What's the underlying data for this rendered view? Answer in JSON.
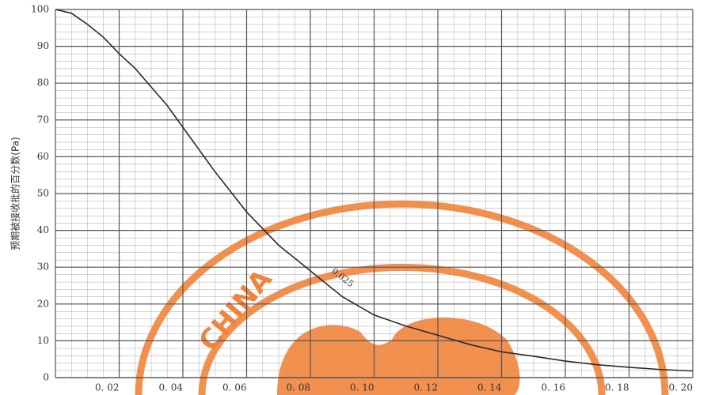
{
  "chart_data": {
    "type": "line",
    "ylabel": "预期被接收批的百分数(Pa)",
    "watermark": "CHINA",
    "x": [
      0,
      0.005,
      0.01,
      0.015,
      0.02,
      0.025,
      0.03,
      0.035,
      0.04,
      0.045,
      0.05,
      0.055,
      0.06,
      0.065,
      0.07,
      0.075,
      0.08,
      0.09,
      0.1,
      0.11,
      0.12,
      0.13,
      0.14,
      0.15,
      0.16,
      0.17,
      0.18,
      0.19,
      0.2
    ],
    "series": [
      {
        "name": "0.025",
        "color": "#2a2a2a",
        "values": [
          100,
          99,
          96,
          92.5,
          88,
          84,
          79,
          74,
          68,
          62,
          56,
          50.5,
          45,
          40.5,
          36,
          32.5,
          29,
          22,
          17,
          14,
          11.5,
          9,
          7,
          5.8,
          4.5,
          3.5,
          2.8,
          2.2,
          1.8
        ]
      }
    ],
    "xlim": [
      0,
      0.2
    ],
    "ylim": [
      0,
      100
    ],
    "xticks": [
      {
        "value": 0.02,
        "label": "0. 02"
      },
      {
        "value": 0.04,
        "label": "0. 04"
      },
      {
        "value": 0.06,
        "label": "0. 06"
      },
      {
        "value": 0.08,
        "label": "0. 08"
      },
      {
        "value": 0.1,
        "label": "0. 10"
      },
      {
        "value": 0.12,
        "label": "0. 12"
      },
      {
        "value": 0.14,
        "label": "0. 14"
      },
      {
        "value": 0.16,
        "label": "0. 16"
      },
      {
        "value": 0.18,
        "label": "0. 18"
      },
      {
        "value": 0.2,
        "label": "0. 20"
      }
    ],
    "yticks": [
      0,
      10,
      20,
      30,
      40,
      50,
      60,
      70,
      80,
      90,
      100
    ],
    "grid": true
  }
}
